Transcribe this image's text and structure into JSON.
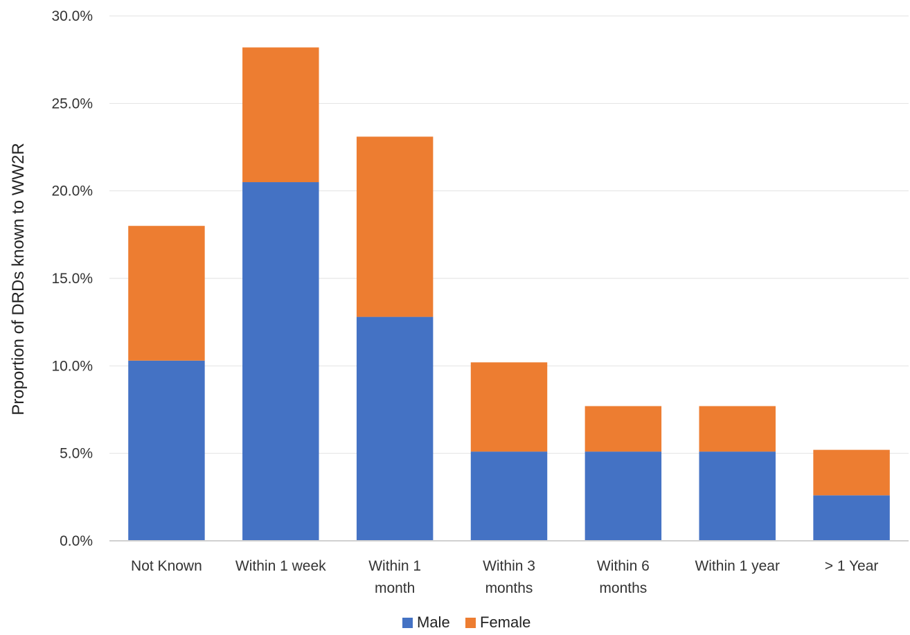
{
  "chart_data": {
    "type": "bar",
    "stacked": true,
    "categories": [
      [
        "Not Known"
      ],
      [
        "Within 1 week"
      ],
      [
        "Within 1",
        "month"
      ],
      [
        "Within 3",
        "months"
      ],
      [
        "Within 6",
        "months"
      ],
      [
        "Within 1 year"
      ],
      [
        "> 1 Year"
      ]
    ],
    "series": [
      {
        "name": "Male",
        "color": "#4472C4",
        "values": [
          10.3,
          20.5,
          12.8,
          5.1,
          5.1,
          5.1,
          2.6
        ]
      },
      {
        "name": "Female",
        "color": "#ED7D31",
        "values": [
          7.7,
          7.7,
          10.3,
          5.1,
          2.6,
          2.6,
          2.6
        ]
      }
    ],
    "title": "",
    "xlabel": "",
    "ylabel": "Proportion of DRDs known to WW2R",
    "ylim": [
      0,
      30
    ],
    "yticks": [
      0,
      5,
      10,
      15,
      20,
      25,
      30
    ],
    "ytick_labels": [
      "0.0%",
      "5.0%",
      "10.0%",
      "15.0%",
      "20.0%",
      "25.0%",
      "30.0%"
    ],
    "grid": true,
    "legend": "bottom-center"
  }
}
